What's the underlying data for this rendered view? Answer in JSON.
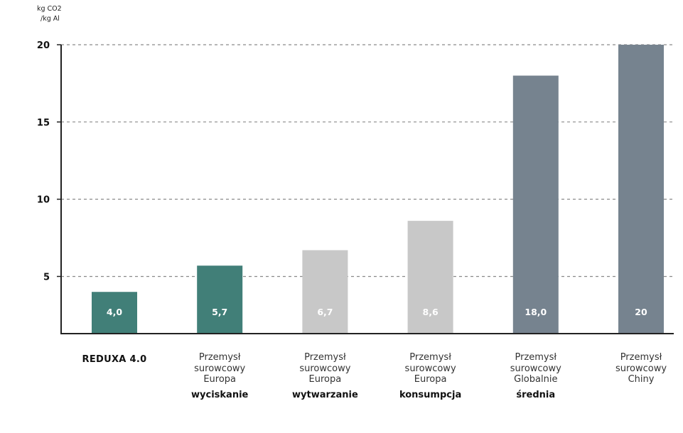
{
  "chart_data": {
    "type": "bar",
    "ylabel": "kg CO2\n/kg Al",
    "ylabel_lines": [
      "kg CO2",
      "/kg Al"
    ],
    "ylim": [
      1.3,
      20
    ],
    "yticks": [
      5,
      10,
      15,
      20
    ],
    "grid": true,
    "categories": [
      "REDUXA 4.0",
      "Przemysł surowcowy Europa wyciskanie",
      "Przemysł surowcowy Europa wytwarzanie",
      "Przemysł surowcowy Europa konsumpcja",
      "Przemysł surowcowy Globalnie średnia",
      "Przemysł surowcowy Chiny"
    ],
    "category_lines": [
      [
        "REDUXA 4.0"
      ],
      [
        "Przemysł",
        "surowcowy",
        "Europa"
      ],
      [
        "Przemysł",
        "surowcowy",
        "Europa"
      ],
      [
        "Przemysł",
        "surowcowy",
        "Europa"
      ],
      [
        "Przemysł",
        "surowcowy",
        "Globalnie"
      ],
      [
        "Przemysł",
        "surowcowy",
        "Chiny"
      ]
    ],
    "category_sublabels": [
      "",
      "wyciskanie",
      "wytwarzanie",
      "konsumpcja",
      "średnia",
      ""
    ],
    "values": [
      4.0,
      5.7,
      6.7,
      8.6,
      18.0,
      20
    ],
    "data_labels": [
      "4,0",
      "5,7",
      "6,7",
      "8,6",
      "18,0",
      "20"
    ],
    "bar_colors": [
      "#417f78",
      "#417f78",
      "#c8c8c8",
      "#c8c8c8",
      "#76838f",
      "#76838f"
    ]
  }
}
